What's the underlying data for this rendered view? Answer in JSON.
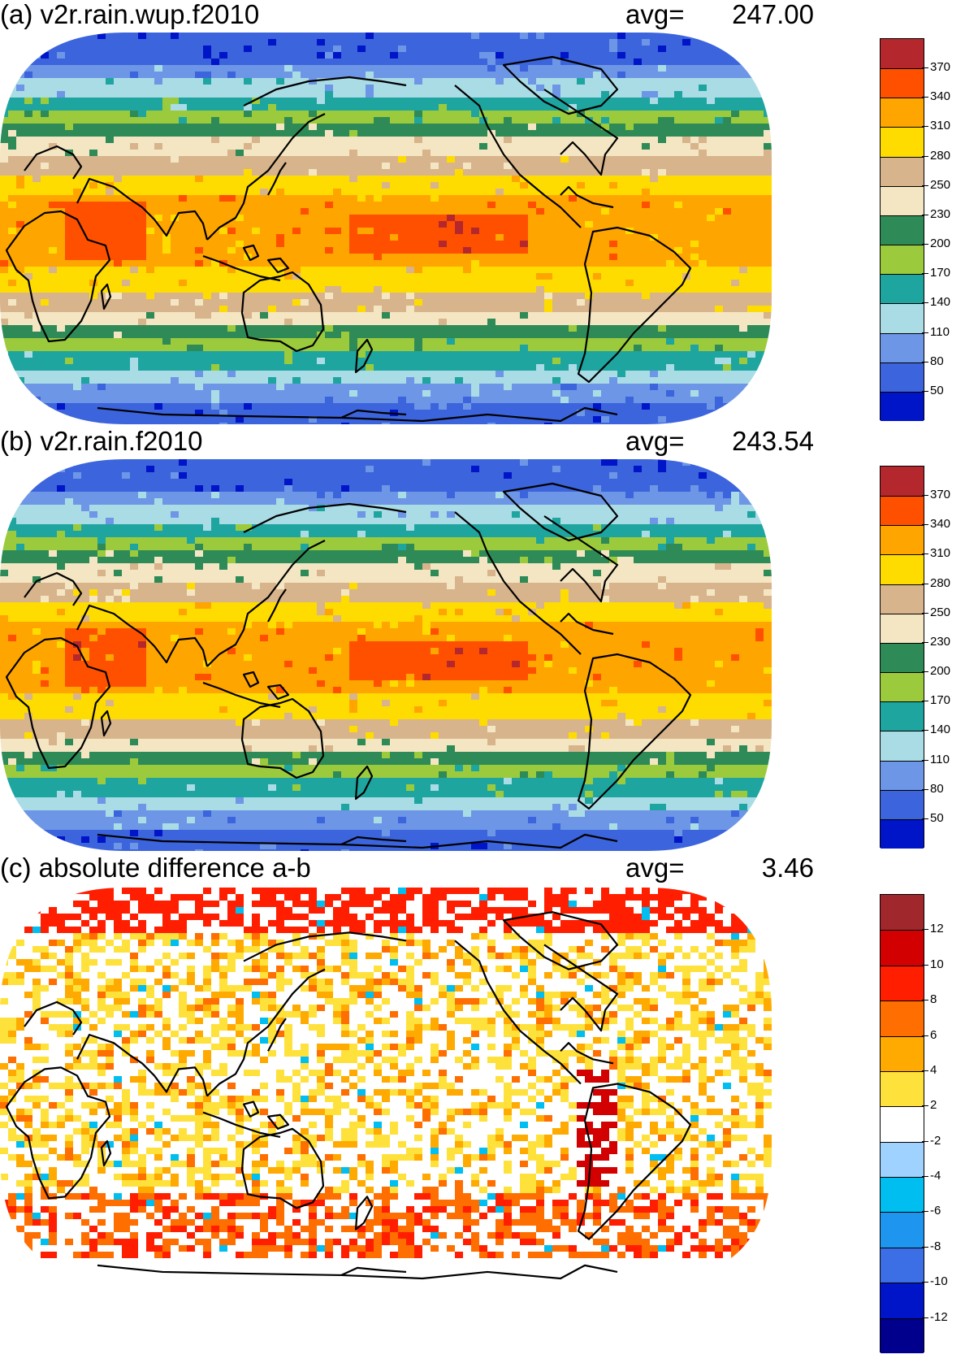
{
  "panels": [
    {
      "title": "(a) v2r.rain.wup.f2010",
      "avg_label": "avg=",
      "avg_value": "247.00",
      "colorbar": {
        "colors": [
          "#0014c8",
          "#3c64dc",
          "#6e96e6",
          "#aadce6",
          "#1ea5a0",
          "#9bcb3c",
          "#2e8b57",
          "#f5e6c3",
          "#d7b48c",
          "#ffdc00",
          "#ffa500",
          "#ff5000",
          "#b4282d"
        ],
        "labels": [
          "50",
          "80",
          "110",
          "140",
          "170",
          "200",
          "230",
          "250",
          "280",
          "310",
          "340",
          "370"
        ]
      }
    },
    {
      "title": "(b) v2r.rain.f2010",
      "avg_label": "avg=",
      "avg_value": "243.54",
      "colorbar": {
        "colors": [
          "#0014c8",
          "#3c64dc",
          "#6e96e6",
          "#aadce6",
          "#1ea5a0",
          "#9bcb3c",
          "#2e8b57",
          "#f5e6c3",
          "#d7b48c",
          "#ffdc00",
          "#ffa500",
          "#ff5000",
          "#b4282d"
        ],
        "labels": [
          "50",
          "80",
          "110",
          "140",
          "170",
          "200",
          "230",
          "250",
          "280",
          "310",
          "340",
          "370"
        ]
      }
    },
    {
      "title": "(c) absolute difference a-b",
      "avg_label": "avg=",
      "avg_value": "3.46",
      "colorbar": {
        "colors": [
          "#00008c",
          "#0014c8",
          "#3c6ee6",
          "#1e96f0",
          "#00bef0",
          "#a0d2ff",
          "#ffffff",
          "#ffe13c",
          "#ffaa00",
          "#ff6e00",
          "#ff1e00",
          "#d20000",
          "#a0282d"
        ],
        "labels": [
          "-12",
          "-10",
          "-8",
          "-6",
          "-4",
          "-2",
          "2",
          "4",
          "6",
          "8",
          "10",
          "12"
        ]
      }
    }
  ]
}
